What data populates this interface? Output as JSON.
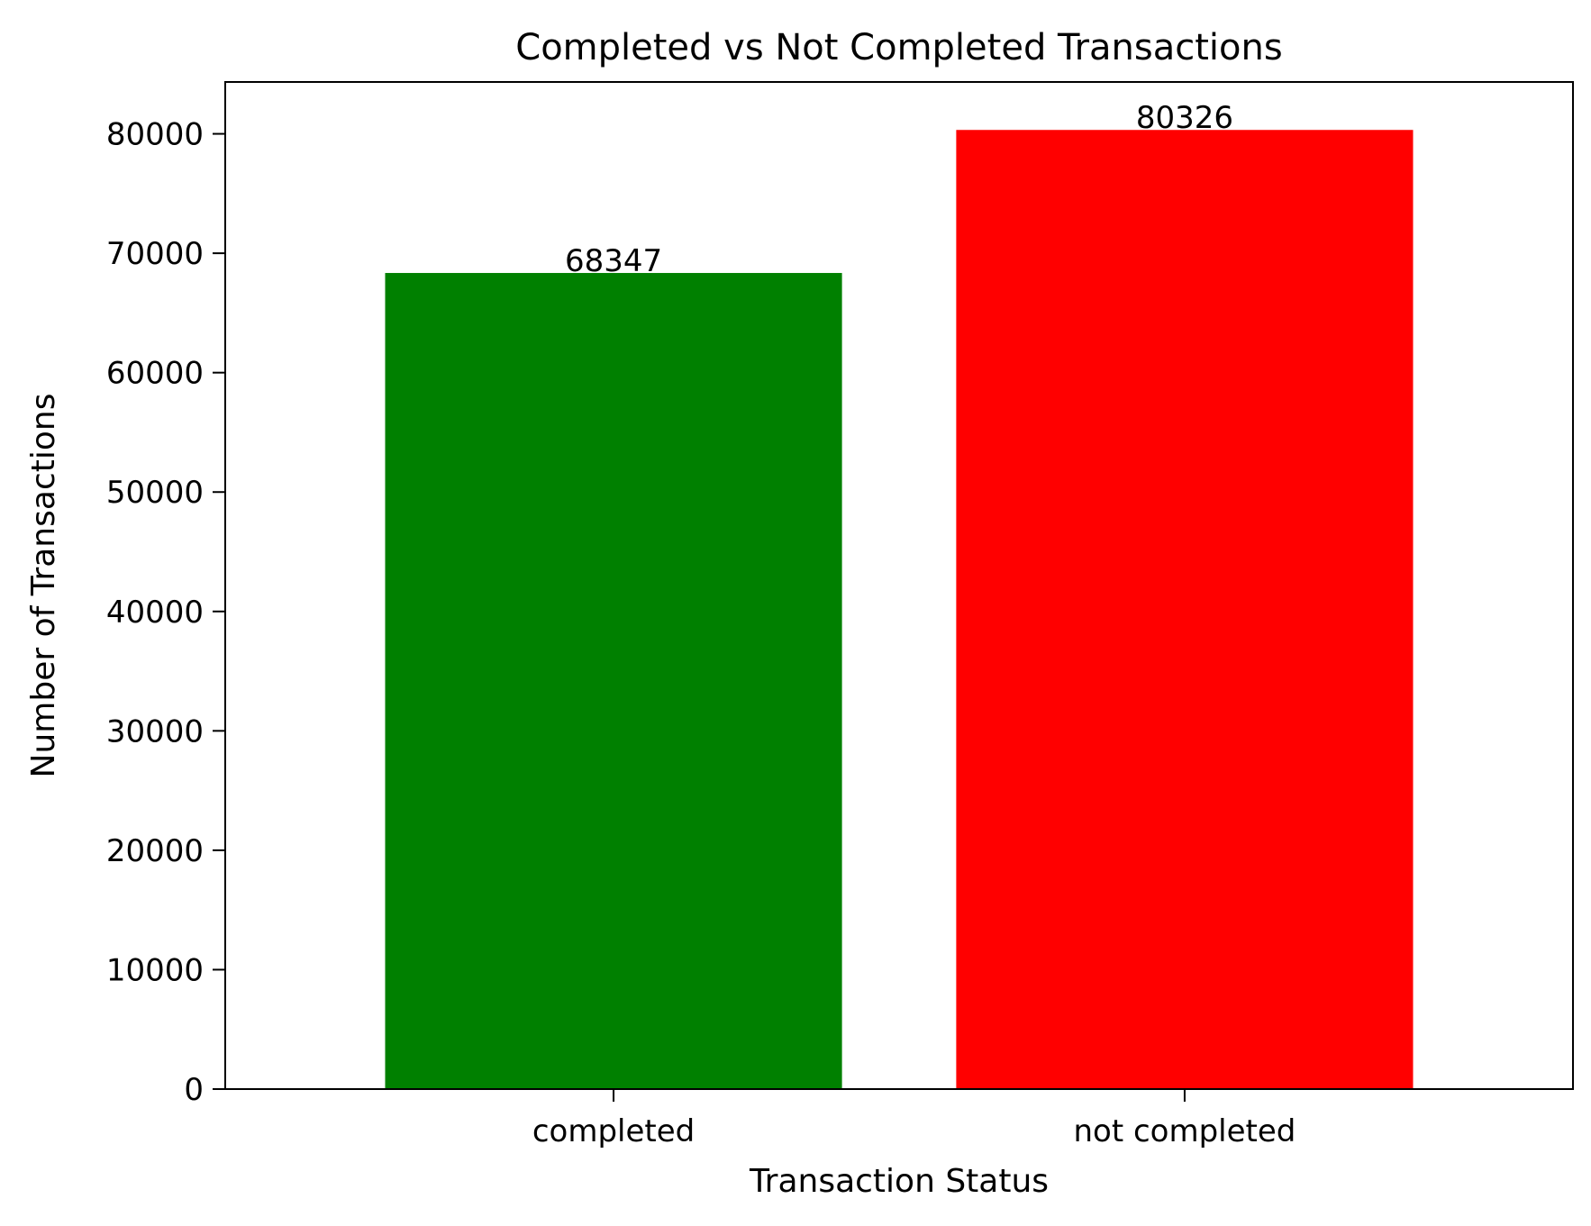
{
  "chart_data": {
    "type": "bar",
    "title": "Completed vs Not Completed Transactions",
    "xlabel": "Transaction Status",
    "ylabel": "Number of Transactions",
    "categories": [
      "completed",
      "not completed"
    ],
    "values": [
      68347,
      80326
    ],
    "data_labels": [
      "68347",
      "80326"
    ],
    "bar_colors": [
      "#008000",
      "#ff0000"
    ],
    "ylim": [
      0,
      84343
    ],
    "yticks": [
      0,
      10000,
      20000,
      30000,
      40000,
      50000,
      60000,
      70000,
      80000
    ],
    "ytick_labels": [
      "0",
      "10000",
      "20000",
      "30000",
      "40000",
      "50000",
      "60000",
      "70000",
      "80000"
    ],
    "grid": false,
    "legend": "none"
  }
}
